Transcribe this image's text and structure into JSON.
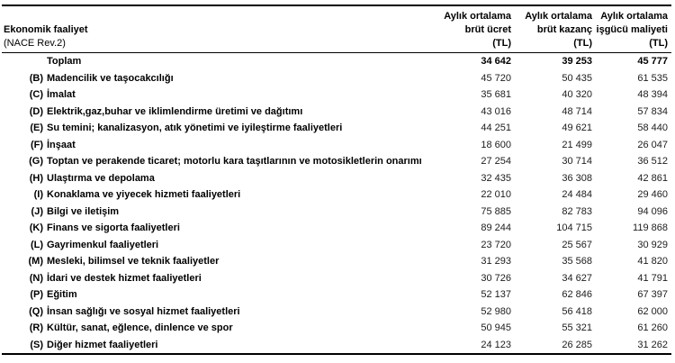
{
  "colors": {
    "background": "#ffffff",
    "rule": "#000000",
    "label_text": "#000000",
    "number_text": "#1c1c1c"
  },
  "table": {
    "header": {
      "activity_title": "Ekonomik faaliyet",
      "activity_subtitle": "(NACE Rev.2)",
      "value_columns": [
        {
          "line1": "Aylık ortalama",
          "line2": "brüt ücret",
          "line3": "(TL)"
        },
        {
          "line1": "Aylık ortalama",
          "line2": "brüt kazanç",
          "line3": "(TL)"
        },
        {
          "line1": "Aylık ortalama",
          "line2": "işgücü maliyeti",
          "line3": "(TL)"
        }
      ]
    },
    "rows": [
      {
        "code": "",
        "label": "Toplam",
        "bold": true,
        "values": [
          "34 642",
          "39 253",
          "45 777"
        ]
      },
      {
        "code": "(B)",
        "label": "Madencilik ve taşocakcılığı",
        "bold": false,
        "values": [
          "45 720",
          "50 435",
          "61 535"
        ]
      },
      {
        "code": "(C)",
        "label": "İmalat",
        "bold": false,
        "values": [
          "35 681",
          "40 320",
          "48 394"
        ]
      },
      {
        "code": "(D)",
        "label": "Elektrik,gaz,buhar ve iklimlendirme üretimi ve dağıtımı",
        "bold": false,
        "values": [
          "43 016",
          "48 714",
          "57 834"
        ]
      },
      {
        "code": "(E)",
        "label": "Su temini; kanalizasyon, atık yönetimi ve iyileştirme faaliyetleri",
        "bold": false,
        "values": [
          "44 251",
          "49 621",
          "58 440"
        ]
      },
      {
        "code": "(F)",
        "label": "İnşaat",
        "bold": false,
        "values": [
          "18 600",
          "21 499",
          "26 047"
        ]
      },
      {
        "code": "(G)",
        "label": "Toptan ve perakende ticaret; motorlu kara taşıtlarının ve motosikletlerin onarımı",
        "bold": false,
        "values": [
          "27 254",
          "30 714",
          "36 512"
        ]
      },
      {
        "code": "(H)",
        "label": "Ulaştırma ve depolama",
        "bold": false,
        "values": [
          "32 435",
          "36 308",
          "42 861"
        ]
      },
      {
        "code": "(I)",
        "label": "Konaklama ve yiyecek hizmeti faaliyetleri",
        "bold": false,
        "values": [
          "22 010",
          "24 484",
          "29 460"
        ]
      },
      {
        "code": "(J)",
        "label": "Bilgi ve iletişim",
        "bold": false,
        "values": [
          "75 885",
          "82 783",
          "94 096"
        ]
      },
      {
        "code": "(K)",
        "label": "Finans ve sigorta faaliyetleri",
        "bold": false,
        "values": [
          "89 244",
          "104 715",
          "119 868"
        ]
      },
      {
        "code": "(L)",
        "label": "Gayrimenkul faaliyetleri",
        "bold": false,
        "values": [
          "23 720",
          "25 567",
          "30 929"
        ]
      },
      {
        "code": "(M)",
        "label": "Mesleki, bilimsel ve teknik faaliyetler",
        "bold": false,
        "values": [
          "31 293",
          "35 568",
          "41 820"
        ]
      },
      {
        "code": "(N)",
        "label": "İdari ve destek hizmet faaliyetleri",
        "bold": false,
        "values": [
          "30 726",
          "34 627",
          "41 791"
        ]
      },
      {
        "code": "(P)",
        "label": "Eğitim",
        "bold": false,
        "values": [
          "52 137",
          "62 846",
          "67 397"
        ]
      },
      {
        "code": "(Q)",
        "label": "İnsan sağlığı ve sosyal hizmet faaliyetleri",
        "bold": false,
        "values": [
          "52 980",
          "56 418",
          "62 000"
        ]
      },
      {
        "code": "(R)",
        "label": "Kültür, sanat, eğlence, dinlence ve spor",
        "bold": false,
        "values": [
          "50 945",
          "55 321",
          "61 260"
        ]
      },
      {
        "code": "(S)",
        "label": "Diğer hizmet faaliyetleri",
        "bold": false,
        "values": [
          "24 123",
          "26 285",
          "31 262"
        ]
      }
    ]
  }
}
